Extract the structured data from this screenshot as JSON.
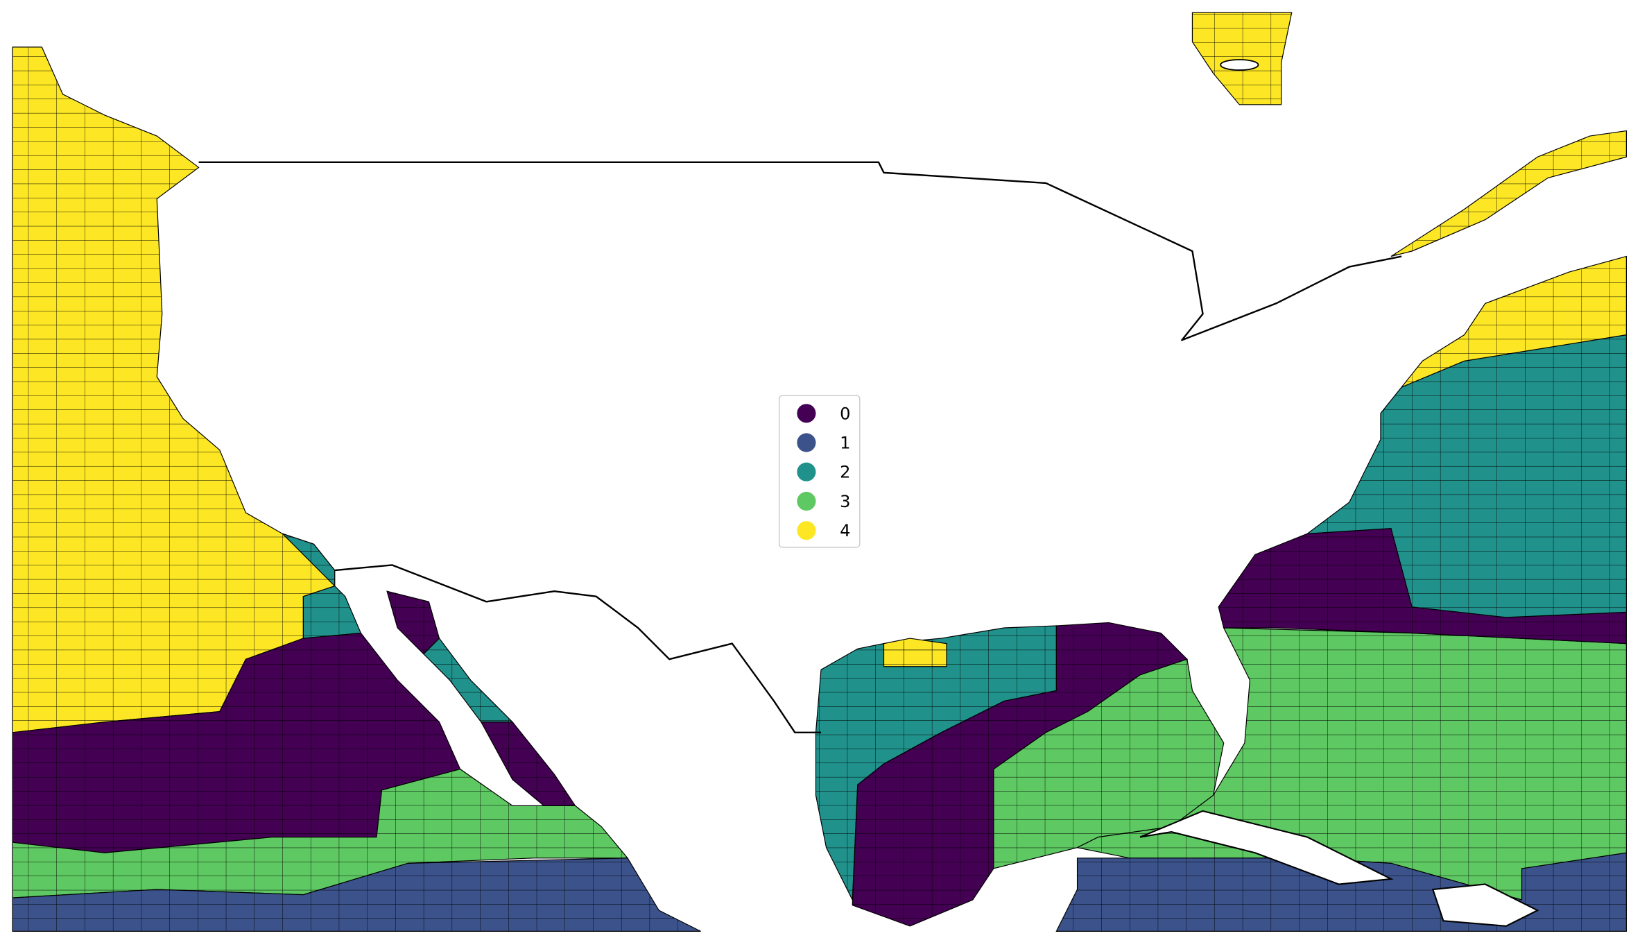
{
  "legend": {
    "items": [
      {
        "label": "0",
        "color": "#440154"
      },
      {
        "label": "1",
        "color": "#3b528b"
      },
      {
        "label": "2",
        "color": "#21918c"
      },
      {
        "label": "3",
        "color": "#5ec962"
      },
      {
        "label": "4",
        "color": "#fde725"
      }
    ]
  }
}
